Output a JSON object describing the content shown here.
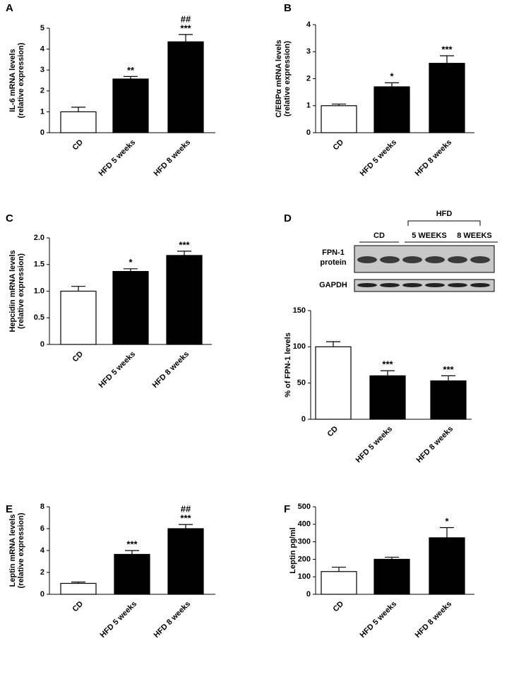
{
  "chart_data": [
    {
      "type": "bar",
      "panel": "A",
      "ylabel": [
        "IL-6 mRNA levels",
        "(relative expression)"
      ],
      "categories": [
        "CD",
        "HFD 5 weeks",
        "HFD 8 weeks"
      ],
      "values": [
        1.0,
        2.57,
        4.35
      ],
      "errors": [
        0.22,
        0.12,
        0.35
      ],
      "colors": [
        "#ffffff",
        "#000000",
        "#000000"
      ],
      "annotations": [
        null,
        [
          "**"
        ],
        [
          "##",
          "***"
        ]
      ],
      "ylim": [
        0,
        5
      ],
      "yticks": [
        0,
        1,
        2,
        3,
        4,
        5
      ]
    },
    {
      "type": "bar",
      "panel": "B",
      "ylabel": [
        "C/EBPα mRNA levels",
        "(relative expression)"
      ],
      "categories": [
        "CD",
        "HFD 5 weeks",
        "HFD 8 weeks"
      ],
      "values": [
        1.0,
        1.7,
        2.57
      ],
      "errors": [
        0.06,
        0.15,
        0.28
      ],
      "colors": [
        "#ffffff",
        "#000000",
        "#000000"
      ],
      "annotations": [
        null,
        [
          "*"
        ],
        [
          "***"
        ]
      ],
      "ylim": [
        0,
        4
      ],
      "yticks": [
        0,
        1,
        2,
        3,
        4
      ]
    },
    {
      "type": "bar",
      "panel": "C",
      "ylabel": [
        "Hepcidin mRNA levels",
        "(relative expression)"
      ],
      "categories": [
        "CD",
        "HFD 5 weeks",
        "HFD 8 weeks"
      ],
      "values": [
        1.0,
        1.37,
        1.67
      ],
      "errors": [
        0.09,
        0.05,
        0.08
      ],
      "colors": [
        "#ffffff",
        "#000000",
        "#000000"
      ],
      "annotations": [
        null,
        [
          "*"
        ],
        [
          "***"
        ]
      ],
      "ylim": [
        0,
        2
      ],
      "yticks": [
        0,
        0.5,
        {
          "value": 1,
          "label": "1.0"
        },
        1.5,
        {
          "value": 2,
          "label": "2.0"
        }
      ]
    },
    {
      "type": "bar",
      "panel": "D",
      "ylabel": [
        "% of FPN-1 levels"
      ],
      "categories": [
        "CD",
        "HFD 5 weeks",
        "HFD 8 weeks"
      ],
      "values": [
        100,
        60,
        53
      ],
      "errors": [
        7,
        7,
        7
      ],
      "colors": [
        "#ffffff",
        "#000000",
        "#000000"
      ],
      "annotations": [
        null,
        [
          "***"
        ],
        [
          "***"
        ]
      ],
      "ylim": [
        0,
        150
      ],
      "yticks": [
        0,
        50,
        100,
        150
      ],
      "blot": {
        "group": "HFD",
        "lanes": [
          "CD",
          "5 WEEKS",
          "8 WEEKS"
        ],
        "rows": [
          [
            "FPN-1",
            "protein"
          ],
          [
            "GAPDH"
          ]
        ]
      }
    },
    {
      "type": "bar",
      "panel": "E",
      "ylabel": [
        "Leptin mRNA levels",
        "(relative expression)"
      ],
      "categories": [
        "CD",
        "HFD 5 weeks",
        "HFD 8 weeks"
      ],
      "values": [
        1.0,
        3.65,
        6.0
      ],
      "errors": [
        0.12,
        0.35,
        0.38
      ],
      "colors": [
        "#ffffff",
        "#000000",
        "#000000"
      ],
      "annotations": [
        null,
        [
          "***"
        ],
        [
          "##",
          "***"
        ]
      ],
      "ylim": [
        0,
        8
      ],
      "yticks": [
        0,
        2,
        4,
        6,
        8
      ]
    },
    {
      "type": "bar",
      "panel": "F",
      "ylabel": [
        "Leptin pg/ml"
      ],
      "categories": [
        "CD",
        "HFD 5 weeks",
        "HFD 8 weeks"
      ],
      "values": [
        130,
        200,
        323
      ],
      "errors": [
        25,
        12,
        58
      ],
      "colors": [
        "#ffffff",
        "#000000",
        "#000000"
      ],
      "annotations": [
        null,
        null,
        [
          "*"
        ]
      ],
      "ylim": [
        0,
        500
      ],
      "yticks": [
        0,
        100,
        200,
        300,
        400,
        500
      ]
    }
  ]
}
